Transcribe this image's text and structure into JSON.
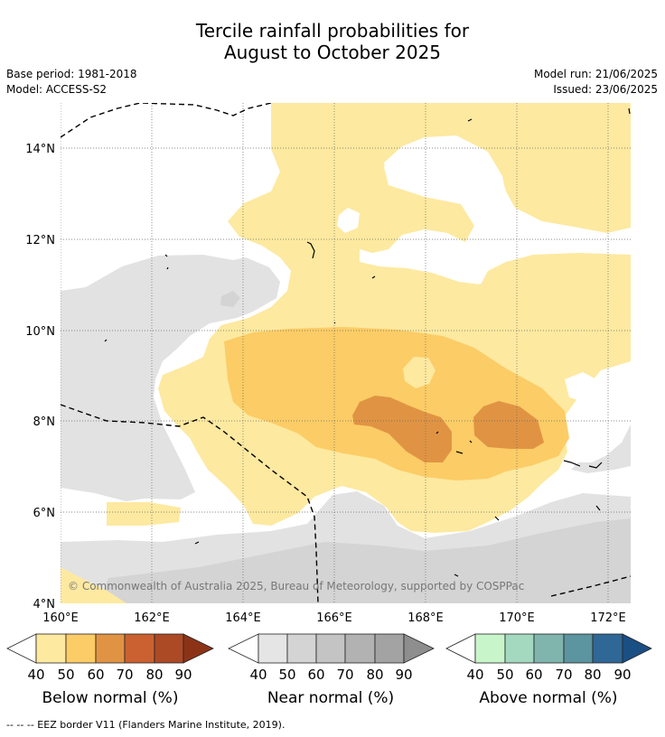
{
  "header": {
    "title_line1": "Tercile rainfall probabilities for",
    "title_line2": "August to October 2025",
    "base_period": "Base period: 1981-2018",
    "model": "Model: ACCESS-S2",
    "model_run": "Model run: 21/06/2025",
    "issued": "Issued: 23/06/2025"
  },
  "map": {
    "lat_labels": [
      "14°N",
      "12°N",
      "10°N",
      "8°N",
      "6°N",
      "4°N"
    ],
    "lon_labels": [
      "160°E",
      "162°E",
      "164°E",
      "166°E",
      "168°E",
      "170°E",
      "172°E"
    ],
    "copyright": "© Commonwealth of Australia 2025, Bureau of Meteorology, supported by COSPPac",
    "colors": {
      "below_40": "#fde9a0",
      "below_50": "#fccc66",
      "below_60": "#e09443",
      "near_40": "#e2e2e2",
      "near_50": "#d4d4d4"
    }
  },
  "legend": {
    "ticks": [
      "40",
      "50",
      "60",
      "70",
      "80",
      "90"
    ],
    "below": {
      "title": "Below normal (%)",
      "colors": [
        "#fde9a0",
        "#fccc66",
        "#e09443",
        "#cb6130",
        "#ad4a26",
        "#8c3317"
      ]
    },
    "near": {
      "title": "Near normal (%)",
      "colors": [
        "#e5e5e5",
        "#d4d4d4",
        "#c4c4c4",
        "#b2b2b2",
        "#a3a3a3",
        "#8e8e8e"
      ]
    },
    "above": {
      "title": "Above normal (%)",
      "colors": [
        "#c9f5cb",
        "#a4d9bf",
        "#80b5ad",
        "#5c949f",
        "#2f6796",
        "#1a4f84"
      ]
    }
  },
  "footer": {
    "note": "--  --  -- EEZ border V11 (Flanders Marine Institute, 2019)."
  }
}
